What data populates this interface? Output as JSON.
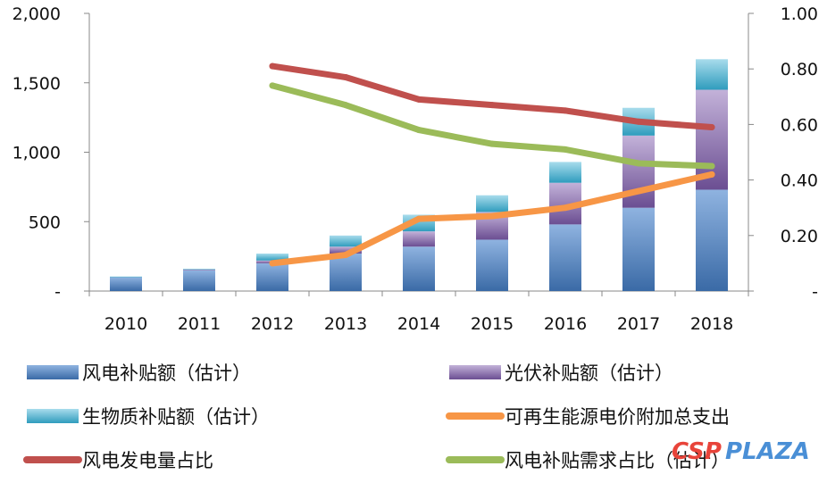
{
  "chart_data": {
    "type": "bar",
    "categories": [
      "2010",
      "2011",
      "2012",
      "2013",
      "2014",
      "2015",
      "2016",
      "2017",
      "2018"
    ],
    "left_axis": {
      "ticks": [
        "-",
        "500",
        "1,000",
        "1,500",
        "2,000"
      ],
      "range": [
        0,
        2000
      ]
    },
    "right_axis": {
      "ticks": [
        "-",
        "0.20",
        "0.40",
        "0.60",
        "0.80",
        "1.00"
      ],
      "range": [
        0,
        1
      ]
    },
    "bar_series": [
      {
        "name": "风电补贴额（估计）",
        "color": "#4f81bd",
        "values": [
          100,
          150,
          200,
          270,
          320,
          370,
          480,
          600,
          730
        ]
      },
      {
        "name": "光伏补贴额（估计）",
        "color": "#8064a2",
        "values": [
          0,
          5,
          20,
          50,
          110,
          200,
          300,
          520,
          720
        ]
      },
      {
        "name": "生物质补贴额（估计）",
        "color": "#4bacc6",
        "values": [
          5,
          5,
          50,
          80,
          120,
          120,
          150,
          200,
          220
        ]
      }
    ],
    "line_series": [
      {
        "name": "可再生能源电价附加总支出",
        "color": "#f79646",
        "axis": "right",
        "values": [
          null,
          null,
          0.1,
          0.13,
          0.26,
          0.27,
          0.3,
          0.36,
          0.42
        ]
      },
      {
        "name": "风电发电量占比",
        "color": "#c0504d",
        "axis": "right",
        "values": [
          null,
          null,
          0.81,
          0.77,
          0.69,
          0.67,
          0.65,
          0.61,
          0.59
        ]
      },
      {
        "name": "风电补贴需求占比（估计）",
        "color": "#9bbb59",
        "axis": "right",
        "values": [
          null,
          null,
          0.74,
          0.67,
          0.58,
          0.53,
          0.51,
          0.46,
          0.45
        ]
      }
    ],
    "legend": {
      "placement": "bottom",
      "items": [
        {
          "label": "风电补贴额（估计）",
          "kind": "bar",
          "color": "#4f81bd"
        },
        {
          "label": "光伏补贴额（估计）",
          "kind": "bar",
          "color": "#8064a2"
        },
        {
          "label": "生物质补贴额（估计）",
          "kind": "bar",
          "color": "#4bacc6"
        },
        {
          "label": "可再生能源电价附加总支出",
          "kind": "line",
          "color": "#f79646"
        },
        {
          "label": "风电发电量占比",
          "kind": "line",
          "color": "#c0504d"
        },
        {
          "label": "风电补贴需求占比（估计）",
          "kind": "line",
          "color": "#9bbb59"
        }
      ]
    },
    "grid": false
  },
  "watermark": {
    "text_a": "CSP",
    "text_b": "PLAZA",
    "color_a": "#e8443a",
    "color_b": "#4a8fd6"
  }
}
